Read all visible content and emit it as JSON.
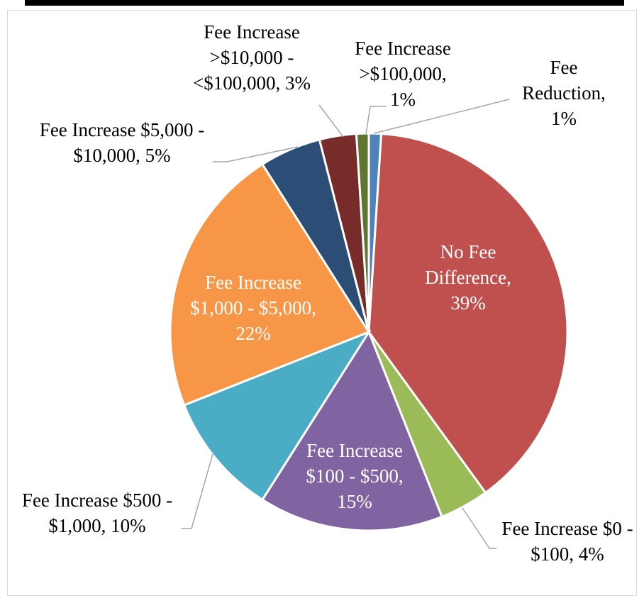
{
  "chart_data": {
    "type": "pie",
    "categories": [
      "Fee Reduction",
      "No Fee Difference",
      "Fee Increase $0 - $100",
      "Fee Increase $100 - $500",
      "Fee Increase $500 - $1,000",
      "Fee Increase $1,000 - $5,000",
      "Fee Increase $5,000 - $10,000",
      "Fee Increase >$10,000 - <$100,000",
      "Fee Increase >$100,000"
    ],
    "values": [
      1,
      39,
      4,
      15,
      10,
      22,
      5,
      3,
      1
    ],
    "value_labels": [
      "1%",
      "39%",
      "4%",
      "15%",
      "10%",
      "22%",
      "5%",
      "3%",
      "1%"
    ],
    "colors": [
      "#4f81bd",
      "#c0504d",
      "#9bbb59",
      "#8064a2",
      "#4bacc6",
      "#f79646",
      "#2c4d75",
      "#772c2a",
      "#5f7530"
    ]
  }
}
